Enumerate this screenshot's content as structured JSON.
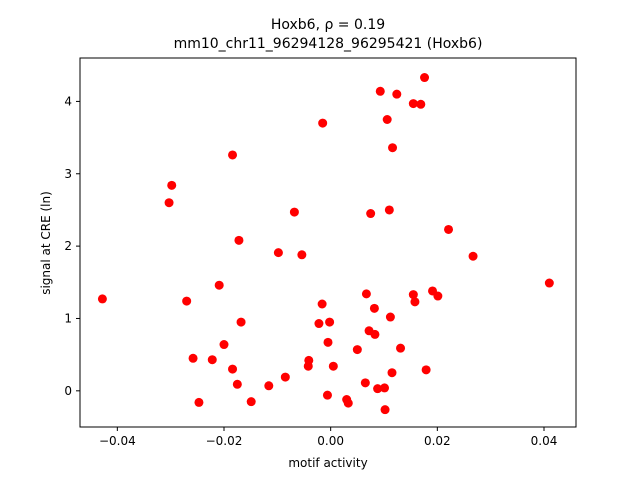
{
  "chart_data": {
    "type": "scatter",
    "title_line1": "Hoxb6, ρ = 0.19",
    "title_line2": "mm10_chr11_96294128_96295421 (Hoxb6)",
    "xlabel": "motif activity",
    "ylabel": "signal at CRE (ln)",
    "xlim": [
      -0.047,
      0.046
    ],
    "ylim": [
      -0.5,
      4.6
    ],
    "xticks": [
      -0.04,
      -0.02,
      0.0,
      0.02,
      0.04
    ],
    "xtick_labels": [
      "−0.04",
      "−0.02",
      "0.00",
      "0.02",
      "0.04"
    ],
    "yticks": [
      0,
      1,
      2,
      3,
      4
    ],
    "ytick_labels": [
      "0",
      "1",
      "2",
      "3",
      "4"
    ],
    "grid": false,
    "marker_color": "#ff0000",
    "points": [
      {
        "x": -0.0428,
        "y": 1.27
      },
      {
        "x": -0.0303,
        "y": 2.6
      },
      {
        "x": -0.0298,
        "y": 2.84
      },
      {
        "x": -0.027,
        "y": 1.24
      },
      {
        "x": -0.0258,
        "y": 0.45
      },
      {
        "x": -0.0247,
        "y": -0.16
      },
      {
        "x": -0.0222,
        "y": 0.43
      },
      {
        "x": -0.0209,
        "y": 1.46
      },
      {
        "x": -0.02,
        "y": 0.64
      },
      {
        "x": -0.0184,
        "y": 3.26
      },
      {
        "x": -0.0184,
        "y": 0.3
      },
      {
        "x": -0.0175,
        "y": 0.09
      },
      {
        "x": -0.0172,
        "y": 2.08
      },
      {
        "x": -0.0168,
        "y": 0.95
      },
      {
        "x": -0.0149,
        "y": -0.15
      },
      {
        "x": -0.0116,
        "y": 0.07
      },
      {
        "x": -0.0098,
        "y": 1.91
      },
      {
        "x": -0.0085,
        "y": 0.19
      },
      {
        "x": -0.0068,
        "y": 2.47
      },
      {
        "x": -0.0054,
        "y": 1.88
      },
      {
        "x": -0.0042,
        "y": 0.34
      },
      {
        "x": -0.0041,
        "y": 0.42
      },
      {
        "x": -0.0022,
        "y": 0.93
      },
      {
        "x": -0.0015,
        "y": 3.7
      },
      {
        "x": -0.0016,
        "y": 1.2
      },
      {
        "x": -0.0006,
        "y": -0.06
      },
      {
        "x": -0.0005,
        "y": 0.67
      },
      {
        "x": -0.0002,
        "y": 0.95
      },
      {
        "x": 0.0005,
        "y": 0.34
      },
      {
        "x": 0.003,
        "y": -0.12
      },
      {
        "x": 0.0033,
        "y": -0.17
      },
      {
        "x": 0.005,
        "y": 0.57
      },
      {
        "x": 0.0065,
        "y": 0.11
      },
      {
        "x": 0.0067,
        "y": 1.34
      },
      {
        "x": 0.0072,
        "y": 0.83
      },
      {
        "x": 0.0075,
        "y": 2.45
      },
      {
        "x": 0.0082,
        "y": 1.14
      },
      {
        "x": 0.0083,
        "y": 0.78
      },
      {
        "x": 0.0088,
        "y": 0.03
      },
      {
        "x": 0.0093,
        "y": 4.14
      },
      {
        "x": 0.0101,
        "y": 0.04
      },
      {
        "x": 0.0102,
        "y": -0.26
      },
      {
        "x": 0.0106,
        "y": 3.75
      },
      {
        "x": 0.011,
        "y": 2.5
      },
      {
        "x": 0.0112,
        "y": 1.02
      },
      {
        "x": 0.0115,
        "y": 0.25
      },
      {
        "x": 0.0116,
        "y": 3.36
      },
      {
        "x": 0.0124,
        "y": 4.1
      },
      {
        "x": 0.0131,
        "y": 0.59
      },
      {
        "x": 0.0155,
        "y": 3.97
      },
      {
        "x": 0.0155,
        "y": 1.33
      },
      {
        "x": 0.0158,
        "y": 1.23
      },
      {
        "x": 0.0169,
        "y": 3.96
      },
      {
        "x": 0.0176,
        "y": 4.33
      },
      {
        "x": 0.0179,
        "y": 0.29
      },
      {
        "x": 0.0191,
        "y": 1.38
      },
      {
        "x": 0.0201,
        "y": 1.31
      },
      {
        "x": 0.0221,
        "y": 2.23
      },
      {
        "x": 0.0267,
        "y": 1.86
      },
      {
        "x": 0.041,
        "y": 1.49
      }
    ]
  }
}
